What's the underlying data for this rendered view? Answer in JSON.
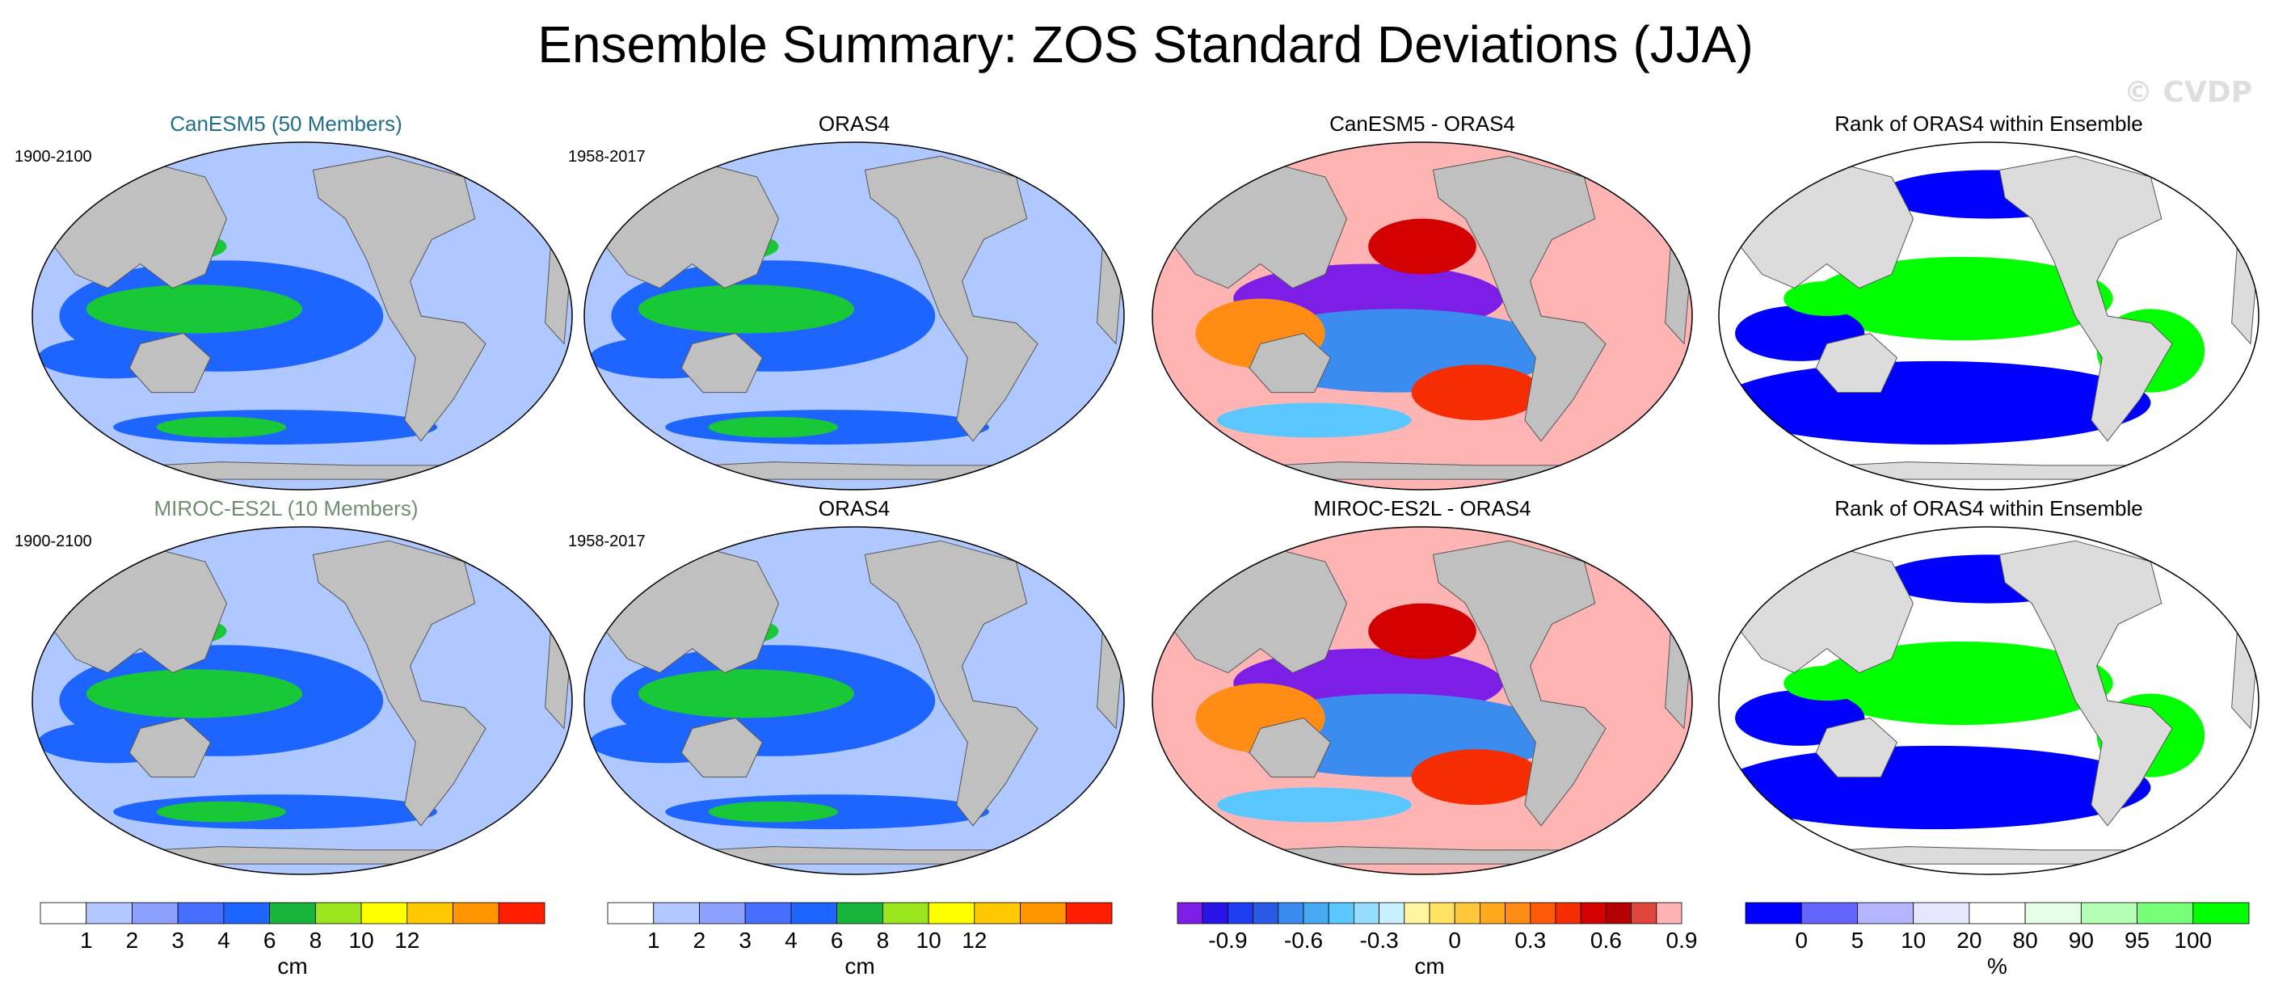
{
  "title": "Ensemble Summary: ZOS Standard Deviations (JJA)",
  "watermark": "© CVDP",
  "colors": {
    "ocean_low": "#afc8ff",
    "ocean_mid": "#1e64ff",
    "ocean_high": "#19c837",
    "land": "#c0c0c0",
    "land_light": "#dcdcdc",
    "model1_title": "#1f6f8b",
    "model2_title": "#6f8f6f"
  },
  "chart_data": [
    {
      "type": "heatmap",
      "title": "CanESM5 (50 Members)",
      "period": "1900-2100",
      "units": "cm",
      "field": "std"
    },
    {
      "type": "heatmap",
      "title": "ORAS4",
      "period": "1958-2017",
      "units": "cm",
      "field": "std"
    },
    {
      "type": "heatmap",
      "title": "CanESM5 - ORAS4",
      "period": "",
      "units": "cm",
      "field": "diff"
    },
    {
      "type": "heatmap",
      "title": "Rank of ORAS4 within Ensemble",
      "period": "",
      "units": "%",
      "field": "rank"
    },
    {
      "type": "heatmap",
      "title": "MIROC-ES2L (10 Members)",
      "period": "1900-2100",
      "units": "cm",
      "field": "std"
    },
    {
      "type": "heatmap",
      "title": "ORAS4",
      "period": "1958-2017",
      "units": "cm",
      "field": "std"
    },
    {
      "type": "heatmap",
      "title": "MIROC-ES2L - ORAS4",
      "period": "",
      "units": "cm",
      "field": "diff"
    },
    {
      "type": "heatmap",
      "title": "Rank of ORAS4 within Ensemble",
      "period": "",
      "units": "%",
      "field": "rank"
    }
  ],
  "colorbars": [
    {
      "units": "cm",
      "colors": [
        "#ffffff",
        "#b4c8ff",
        "#8ca0ff",
        "#466eff",
        "#1e64ff",
        "#19b43c",
        "#9be61e",
        "#ffff00",
        "#ffc800",
        "#ff9600",
        "#ff1e00"
      ],
      "labels": [
        "1",
        "2",
        "3",
        "4",
        "6",
        "8",
        "10",
        "12"
      ]
    },
    {
      "units": "cm",
      "colors": [
        "#ffffff",
        "#b4c8ff",
        "#8ca0ff",
        "#466eff",
        "#1e64ff",
        "#19b43c",
        "#9be61e",
        "#ffff00",
        "#ffc800",
        "#ff9600",
        "#ff1e00"
      ],
      "labels": [
        "1",
        "2",
        "3",
        "4",
        "6",
        "8",
        "10",
        "12"
      ]
    },
    {
      "units": "cm",
      "colors": [
        "#7d1ee6",
        "#2814e6",
        "#1e3cf0",
        "#285ae6",
        "#3c8cf0",
        "#46aaf5",
        "#5ac8ff",
        "#96dcff",
        "#c8f0ff",
        "#fff5a0",
        "#ffe164",
        "#ffc83c",
        "#ffaa1e",
        "#ff8c14",
        "#ff5a0a",
        "#f52d00",
        "#d20000",
        "#b40000",
        "#e1463c",
        "#ffb4b4"
      ],
      "labels": [
        "-0.9",
        "-0.6",
        "-0.3",
        "0",
        "0.3",
        "0.6",
        "0.9"
      ]
    },
    {
      "units": "%",
      "colors": [
        "#0000ff",
        "#6464ff",
        "#b4b4ff",
        "#e6e6ff",
        "#ffffff",
        "#e6ffe6",
        "#b4ffb4",
        "#78ff78",
        "#00ff00"
      ],
      "labels": [
        "0",
        "5",
        "10",
        "20",
        "80",
        "90",
        "95",
        "100"
      ]
    }
  ]
}
